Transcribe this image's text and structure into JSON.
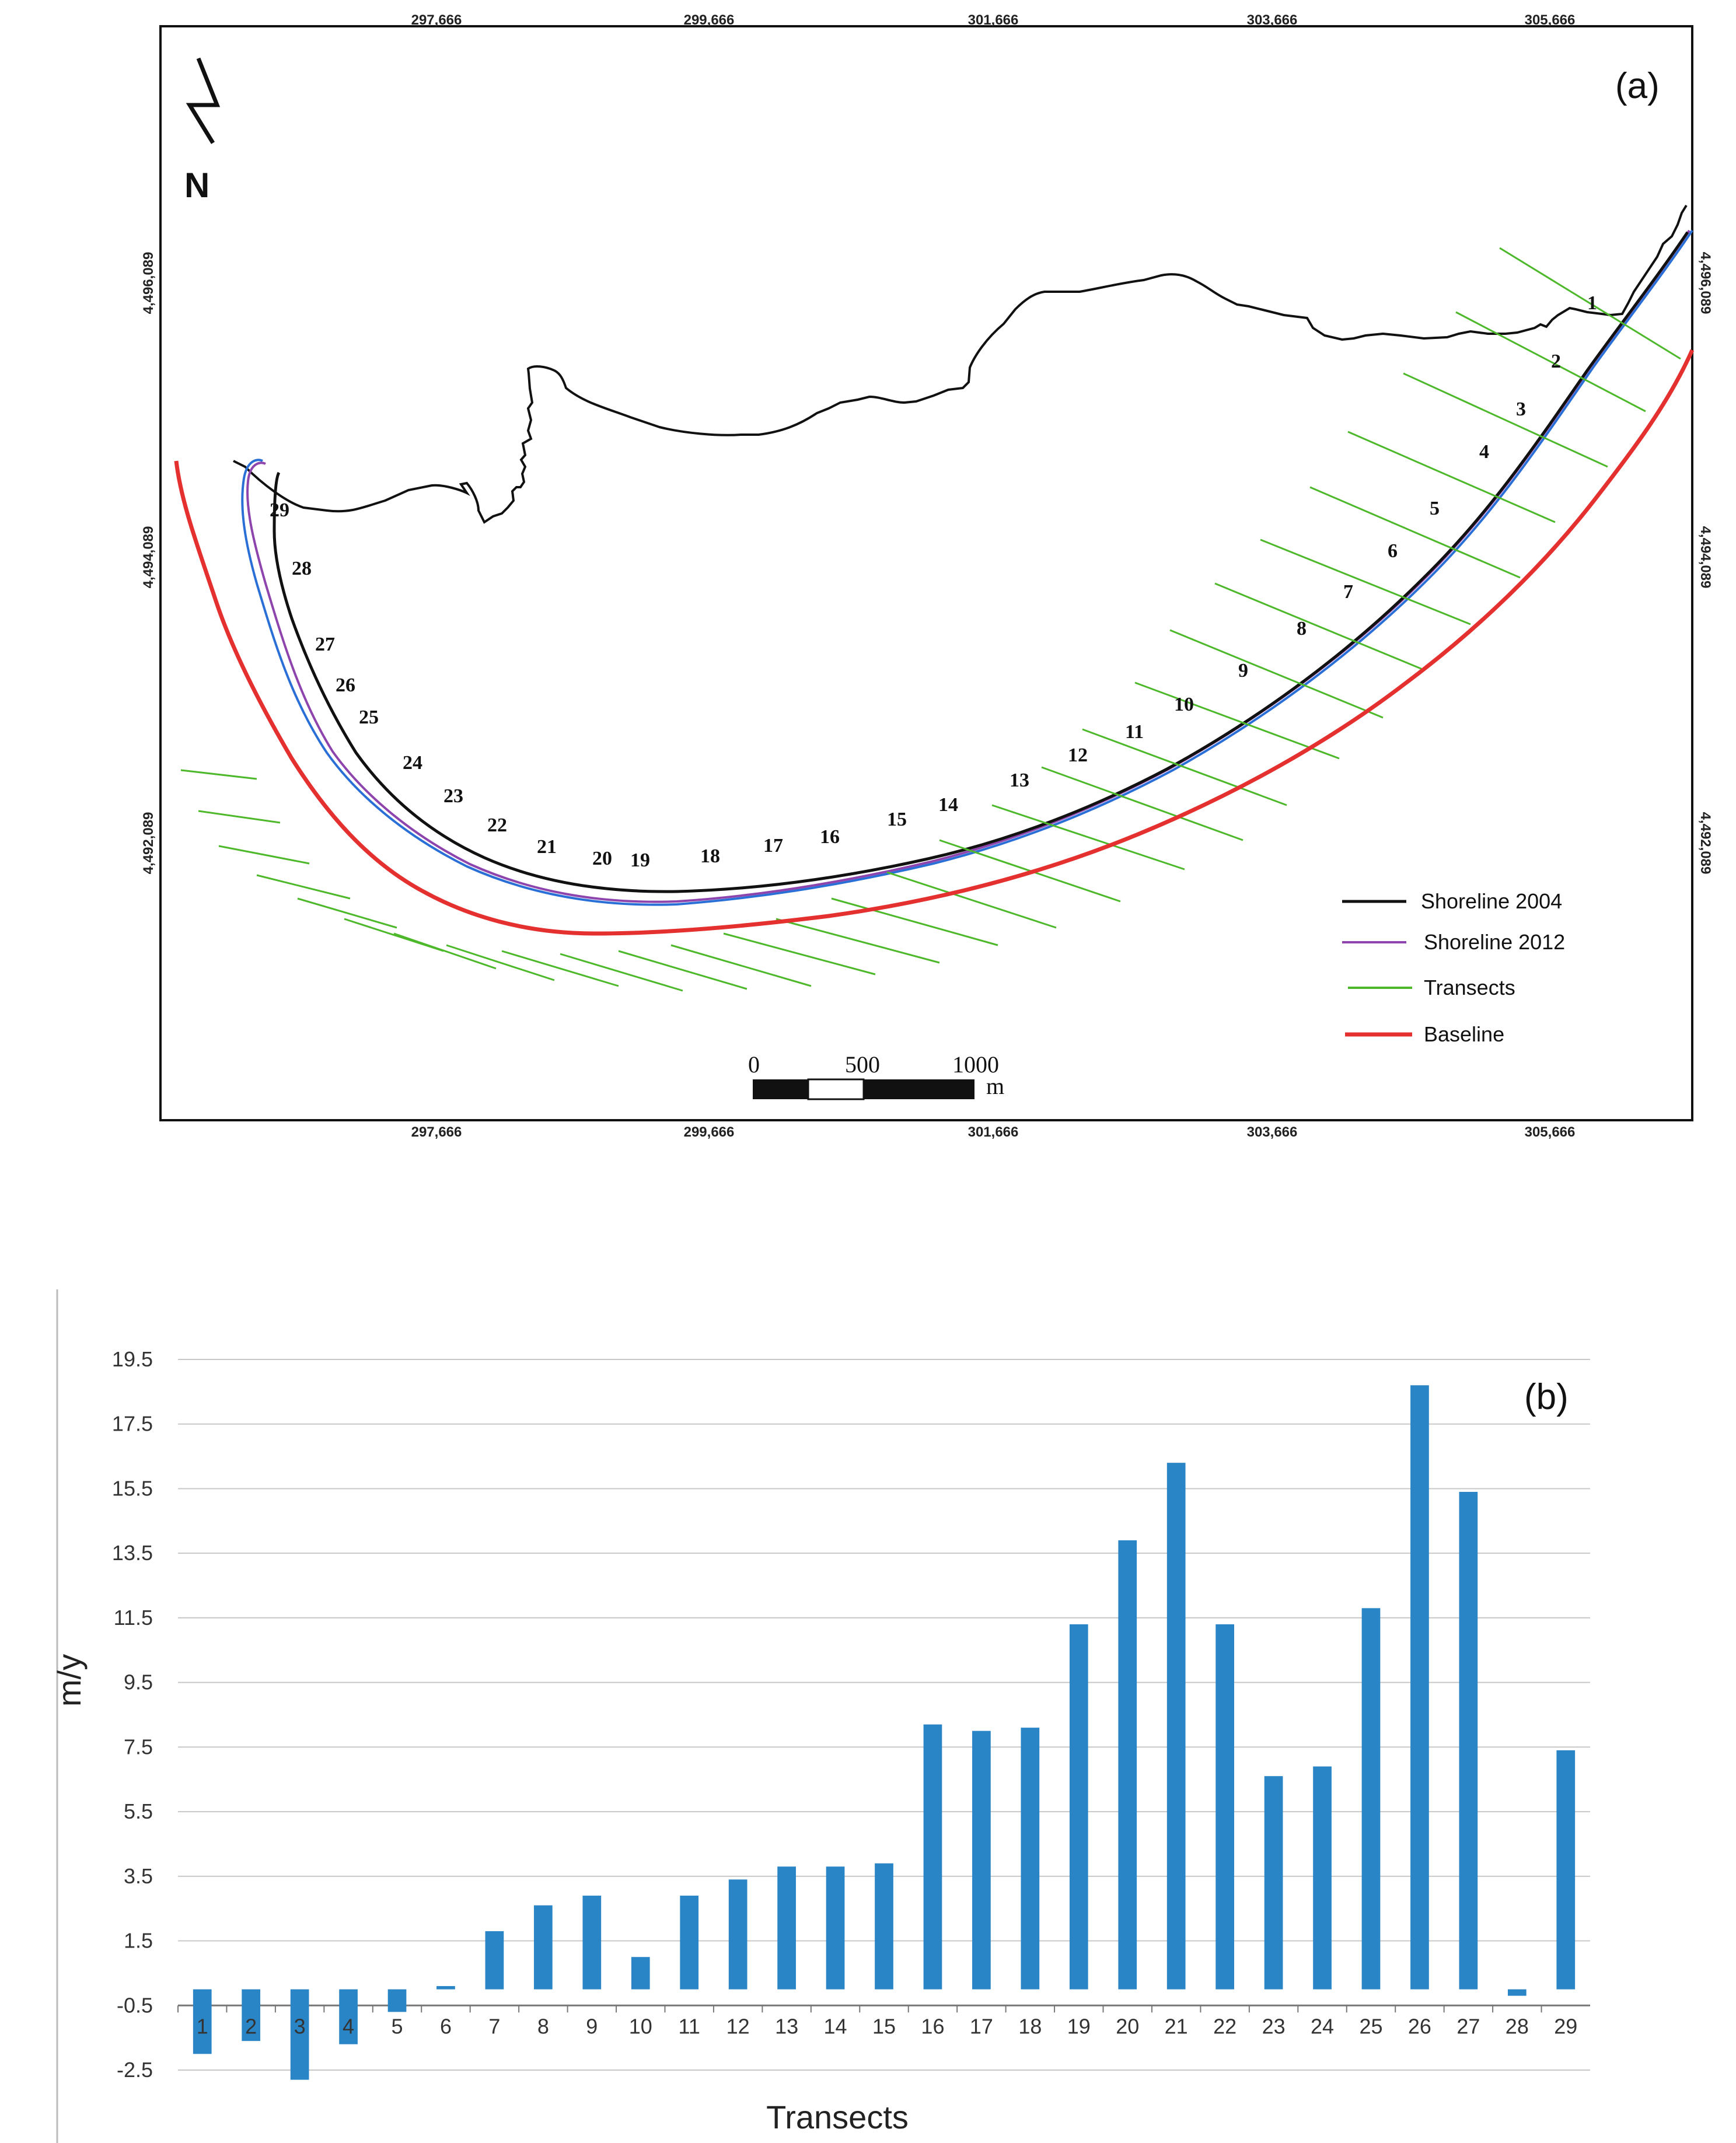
{
  "map": {
    "panel_label": "(a)",
    "north_label": "N",
    "x_coords": [
      "297,666",
      "299,666",
      "301,666",
      "303,666",
      "305,666"
    ],
    "y_coords": [
      "4,496,089",
      "4,494,089",
      "4,492,089"
    ],
    "legend": [
      {
        "label": "Shoreline 2004",
        "color": "#111111"
      },
      {
        "label": "Shoreline 2012",
        "color": "#8e44ad"
      },
      {
        "label": "Transects",
        "color": "#4cb82a"
      },
      {
        "label": "Baseline",
        "color": "#e53030"
      }
    ],
    "scale_labels": [
      "0",
      "500",
      "1000"
    ],
    "scale_unit": "m",
    "transect_numbers": [
      "1",
      "2",
      "3",
      "4",
      "5",
      "6",
      "7",
      "8",
      "9",
      "10",
      "11",
      "12",
      "13",
      "14",
      "15",
      "16",
      "17",
      "18",
      "19",
      "20",
      "21",
      "22",
      "23",
      "24",
      "25",
      "26",
      "27",
      "28",
      "29"
    ]
  },
  "chart_data": {
    "type": "bar",
    "panel_label": "(b)",
    "xlabel": "Transects",
    "ylabel": "m/y",
    "ylim": [
      -2.5,
      19.5
    ],
    "yticks": [
      "19.5",
      "17.5",
      "15.5",
      "13.5",
      "11.5",
      "9.5",
      "7.5",
      "5.5",
      "3.5",
      "1.5",
      "-0.5",
      "-2.5"
    ],
    "categories": [
      "1",
      "2",
      "3",
      "4",
      "5",
      "6",
      "7",
      "8",
      "9",
      "10",
      "11",
      "12",
      "13",
      "14",
      "15",
      "16",
      "17",
      "18",
      "19",
      "20",
      "21",
      "22",
      "23",
      "24",
      "25",
      "26",
      "27",
      "28",
      "29"
    ],
    "values": [
      -2.0,
      -1.6,
      -2.8,
      -1.7,
      -0.7,
      0.1,
      1.8,
      2.6,
      2.9,
      1.0,
      2.9,
      3.4,
      3.8,
      3.8,
      3.9,
      8.2,
      8.0,
      8.1,
      11.3,
      13.9,
      16.3,
      11.3,
      6.6,
      6.9,
      11.8,
      18.7,
      15.4,
      -0.2,
      7.4
    ],
    "bar_color": "#2a85c6",
    "grid": true
  }
}
